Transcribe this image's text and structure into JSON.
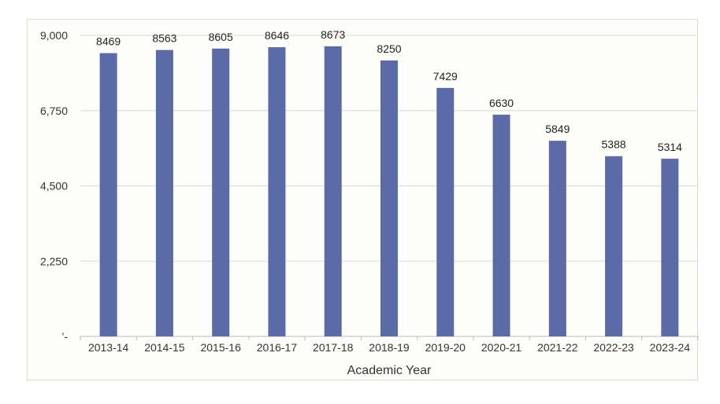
{
  "chart_data": {
    "type": "bar",
    "title": "",
    "xlabel": "Academic Year",
    "ylabel": "",
    "categories": [
      "2013-14",
      "2014-15",
      "2015-16",
      "2016-17",
      "2017-18",
      "2018-19",
      "2019-20",
      "2020-21",
      "2021-22",
      "2022-23",
      "2023-24"
    ],
    "values": [
      8469,
      8563,
      8605,
      8646,
      8673,
      8250,
      7429,
      6630,
      5849,
      5388,
      5314
    ],
    "data_labels": [
      "8469",
      "8563",
      "8605",
      "8646",
      "8673",
      "8250",
      "7429",
      "6630",
      "5849",
      "5388",
      "5314"
    ],
    "ylim": [
      0,
      9000
    ],
    "yticks": [
      0,
      2250,
      4500,
      6750,
      9000
    ],
    "ytick_labels": [
      "'-",
      "2,250",
      "4,500",
      "6,750",
      "9,000"
    ],
    "grid": true,
    "legend": "none",
    "bar_color": "#5b6ba8"
  }
}
